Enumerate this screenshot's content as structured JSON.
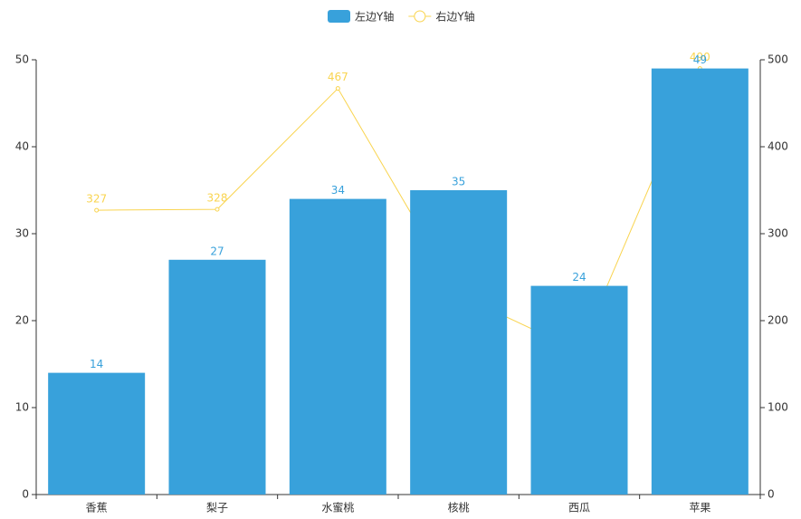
{
  "chart_data": {
    "type": "bar-line",
    "categories": [
      "香蕉",
      "梨子",
      "水蜜桃",
      "核桃",
      "西瓜",
      "苹果"
    ],
    "series": [
      {
        "name": "左边Y轴",
        "type": "bar",
        "color": "#38a1db",
        "values": [
          14,
          27,
          34,
          35,
          24,
          49
        ]
      },
      {
        "name": "右边Y轴",
        "type": "line",
        "axis": "y2",
        "color": "#f9d44f",
        "values": [
          327,
          328,
          467,
          230,
          165,
          490
        ]
      }
    ],
    "ylim": [
      0,
      50
    ],
    "yticks": [
      0,
      10,
      20,
      30,
      40,
      50
    ],
    "y2lim": [
      0,
      500
    ],
    "y2ticks": [
      0,
      100,
      200,
      300,
      400,
      500
    ],
    "legend": "top"
  }
}
